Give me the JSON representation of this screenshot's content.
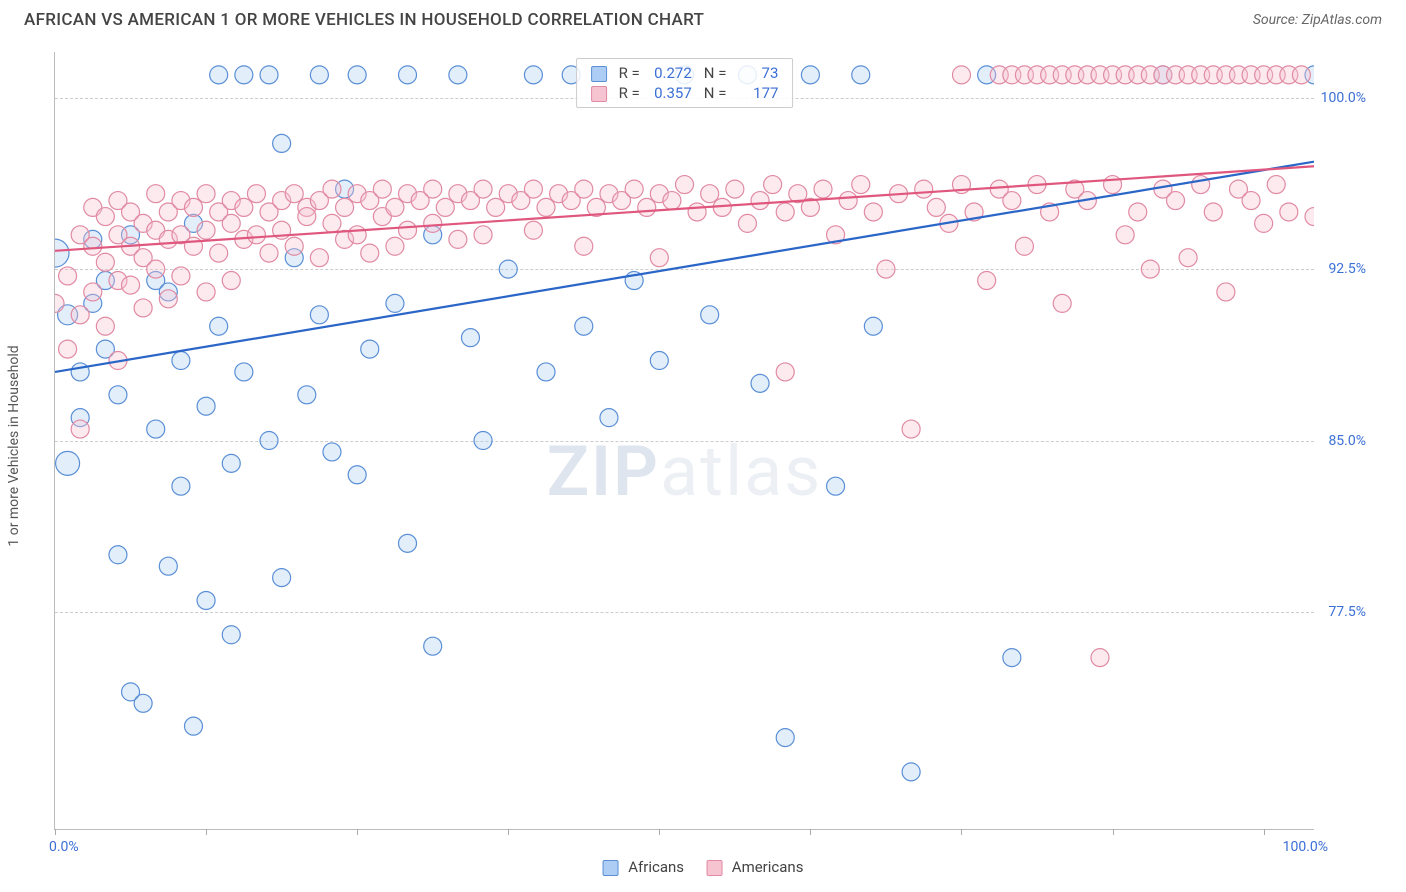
{
  "header": {
    "title": "AFRICAN VS AMERICAN 1 OR MORE VEHICLES IN HOUSEHOLD CORRELATION CHART",
    "source": "Source: ZipAtlas.com"
  },
  "chart": {
    "type": "scatter",
    "background_color": "#ffffff",
    "grid_color": "#cccccc",
    "axis_color": "#bbbbbb",
    "watermark_text_a": "ZIP",
    "watermark_text_b": "atlas",
    "ylabel": "1 or more Vehicles in Household",
    "ylabel_fontsize": 14,
    "xlim": [
      0,
      100
    ],
    "ylim": [
      68,
      102
    ],
    "xtick_label_min": "0.0%",
    "xtick_label_max": "100.0%",
    "xtick_positions_pct": [
      0,
      12,
      24,
      36,
      48,
      60,
      72,
      84,
      96
    ],
    "yticks": [
      {
        "v": 100.0,
        "label": "100.0%"
      },
      {
        "v": 92.5,
        "label": "92.5%"
      },
      {
        "v": 85.0,
        "label": "85.0%"
      },
      {
        "v": 77.5,
        "label": "77.5%"
      }
    ],
    "marker_radius": 9,
    "marker_stroke_width": 1.2,
    "marker_fill_opacity": 0.35,
    "line_width": 2.2,
    "series": [
      {
        "key": "africans",
        "label": "Africans",
        "color_fill": "#aecdf4",
        "color_stroke": "#5a8fd6",
        "line_color": "#2a66c8",
        "R": "0.272",
        "N": "73",
        "trend": {
          "x1": 0,
          "y1": 88.0,
          "x2": 100,
          "y2": 97.2
        },
        "points": [
          [
            0,
            93.2,
            14
          ],
          [
            1,
            90.5,
            10
          ],
          [
            2,
            88.0,
            9
          ],
          [
            2,
            86.0,
            9
          ],
          [
            1,
            84.0,
            12
          ],
          [
            3,
            91.0,
            9
          ],
          [
            3,
            93.8,
            9
          ],
          [
            4,
            92.0,
            9
          ],
          [
            4,
            89.0,
            9
          ],
          [
            5,
            87.0,
            9
          ],
          [
            5,
            80.0,
            9
          ],
          [
            6,
            94.0,
            9
          ],
          [
            6,
            74.0,
            9
          ],
          [
            7,
            73.5,
            9
          ],
          [
            8,
            92.0,
            9
          ],
          [
            8,
            85.5,
            9
          ],
          [
            9,
            91.5,
            9
          ],
          [
            9,
            79.5,
            9
          ],
          [
            10,
            88.5,
            9
          ],
          [
            10,
            83.0,
            9
          ],
          [
            11,
            94.5,
            9
          ],
          [
            11,
            72.5,
            9
          ],
          [
            12,
            86.5,
            9
          ],
          [
            12,
            78.0,
            9
          ],
          [
            13,
            101.0,
            9
          ],
          [
            13,
            90.0,
            9
          ],
          [
            14,
            84.0,
            9
          ],
          [
            14,
            76.5,
            9
          ],
          [
            15,
            101.0,
            9
          ],
          [
            15,
            88.0,
            9
          ],
          [
            17,
            101.0,
            9
          ],
          [
            17,
            85.0,
            9
          ],
          [
            18,
            98.0,
            9
          ],
          [
            18,
            79.0,
            9
          ],
          [
            19,
            93.0,
            9
          ],
          [
            20,
            87.0,
            9
          ],
          [
            21,
            101.0,
            9
          ],
          [
            21,
            90.5,
            9
          ],
          [
            22,
            84.5,
            9
          ],
          [
            23,
            96.0,
            9
          ],
          [
            24,
            101.0,
            9
          ],
          [
            24,
            83.5,
            9
          ],
          [
            25,
            89.0,
            9
          ],
          [
            27,
            91.0,
            9
          ],
          [
            28,
            101.0,
            9
          ],
          [
            28,
            80.5,
            9
          ],
          [
            30,
            94.0,
            9
          ],
          [
            30,
            76.0,
            9
          ],
          [
            32,
            101.0,
            9
          ],
          [
            33,
            89.5,
            9
          ],
          [
            34,
            85.0,
            9
          ],
          [
            36,
            92.5,
            9
          ],
          [
            38,
            101.0,
            9
          ],
          [
            39,
            88.0,
            9
          ],
          [
            41,
            101.0,
            9
          ],
          [
            42,
            90.0,
            9
          ],
          [
            44,
            86.0,
            9
          ],
          [
            46,
            92.0,
            9
          ],
          [
            48,
            88.5,
            9
          ],
          [
            50,
            101.0,
            9
          ],
          [
            52,
            90.5,
            9
          ],
          [
            55,
            101.0,
            9
          ],
          [
            56,
            87.5,
            9
          ],
          [
            58,
            72.0,
            9
          ],
          [
            60,
            101.0,
            9
          ],
          [
            62,
            83.0,
            9
          ],
          [
            64,
            101.0,
            9
          ],
          [
            65,
            90.0,
            9
          ],
          [
            68,
            70.5,
            9
          ],
          [
            74,
            101.0,
            9
          ],
          [
            76,
            75.5,
            9
          ],
          [
            88,
            101.0,
            9
          ],
          [
            100,
            101.0,
            9
          ]
        ]
      },
      {
        "key": "americans",
        "label": "Americans",
        "color_fill": "#f6c4d1",
        "color_stroke": "#e18aa3",
        "line_color": "#e0577e",
        "R": "0.357",
        "N": "177",
        "trend": {
          "x1": 0,
          "y1": 93.3,
          "x2": 100,
          "y2": 97.0
        },
        "points": [
          [
            0,
            91.0,
            9
          ],
          [
            1,
            92.2,
            9
          ],
          [
            1,
            89.0,
            9
          ],
          [
            2,
            94.0,
            9
          ],
          [
            2,
            90.5,
            9
          ],
          [
            2,
            85.5,
            9
          ],
          [
            3,
            95.2,
            9
          ],
          [
            3,
            93.5,
            9
          ],
          [
            3,
            91.5,
            9
          ],
          [
            4,
            94.8,
            9
          ],
          [
            4,
            92.8,
            9
          ],
          [
            4,
            90.0,
            9
          ],
          [
            5,
            95.5,
            9
          ],
          [
            5,
            94.0,
            9
          ],
          [
            5,
            92.0,
            9
          ],
          [
            5,
            88.5,
            9
          ],
          [
            6,
            95.0,
            9
          ],
          [
            6,
            93.5,
            9
          ],
          [
            6,
            91.8,
            9
          ],
          [
            7,
            94.5,
            9
          ],
          [
            7,
            93.0,
            9
          ],
          [
            7,
            90.8,
            9
          ],
          [
            8,
            95.8,
            9
          ],
          [
            8,
            94.2,
            9
          ],
          [
            8,
            92.5,
            9
          ],
          [
            9,
            95.0,
            9
          ],
          [
            9,
            93.8,
            9
          ],
          [
            9,
            91.2,
            9
          ],
          [
            10,
            95.5,
            9
          ],
          [
            10,
            94.0,
            9
          ],
          [
            10,
            92.2,
            9
          ],
          [
            11,
            95.2,
            9
          ],
          [
            11,
            93.5,
            9
          ],
          [
            12,
            95.8,
            9
          ],
          [
            12,
            94.2,
            9
          ],
          [
            12,
            91.5,
            9
          ],
          [
            13,
            95.0,
            9
          ],
          [
            13,
            93.2,
            9
          ],
          [
            14,
            95.5,
            9
          ],
          [
            14,
            94.5,
            9
          ],
          [
            14,
            92.0,
            9
          ],
          [
            15,
            95.2,
            9
          ],
          [
            15,
            93.8,
            9
          ],
          [
            16,
            95.8,
            9
          ],
          [
            16,
            94.0,
            9
          ],
          [
            17,
            95.0,
            9
          ],
          [
            17,
            93.2,
            9
          ],
          [
            18,
            95.5,
            9
          ],
          [
            18,
            94.2,
            9
          ],
          [
            19,
            95.8,
            9
          ],
          [
            19,
            93.5,
            9
          ],
          [
            20,
            95.2,
            9
          ],
          [
            20,
            94.8,
            9
          ],
          [
            21,
            95.5,
            9
          ],
          [
            21,
            93.0,
            9
          ],
          [
            22,
            96.0,
            9
          ],
          [
            22,
            94.5,
            9
          ],
          [
            23,
            95.2,
            9
          ],
          [
            23,
            93.8,
            9
          ],
          [
            24,
            95.8,
            9
          ],
          [
            24,
            94.0,
            9
          ],
          [
            25,
            95.5,
            9
          ],
          [
            25,
            93.2,
            9
          ],
          [
            26,
            96.0,
            9
          ],
          [
            26,
            94.8,
            9
          ],
          [
            27,
            95.2,
            9
          ],
          [
            27,
            93.5,
            9
          ],
          [
            28,
            95.8,
            9
          ],
          [
            28,
            94.2,
            9
          ],
          [
            29,
            95.5,
            9
          ],
          [
            30,
            96.0,
            9
          ],
          [
            30,
            94.5,
            9
          ],
          [
            31,
            95.2,
            9
          ],
          [
            32,
            95.8,
            9
          ],
          [
            32,
            93.8,
            9
          ],
          [
            33,
            95.5,
            9
          ],
          [
            34,
            96.0,
            9
          ],
          [
            34,
            94.0,
            9
          ],
          [
            35,
            95.2,
            9
          ],
          [
            36,
            95.8,
            9
          ],
          [
            37,
            95.5,
            9
          ],
          [
            38,
            96.0,
            9
          ],
          [
            38,
            94.2,
            9
          ],
          [
            39,
            95.2,
            9
          ],
          [
            40,
            95.8,
            9
          ],
          [
            41,
            95.5,
            9
          ],
          [
            42,
            96.0,
            9
          ],
          [
            42,
            93.5,
            9
          ],
          [
            43,
            95.2,
            9
          ],
          [
            44,
            95.8,
            9
          ],
          [
            45,
            95.5,
            9
          ],
          [
            46,
            96.0,
            9
          ],
          [
            47,
            95.2,
            9
          ],
          [
            48,
            95.8,
            9
          ],
          [
            48,
            93.0,
            9
          ],
          [
            49,
            95.5,
            9
          ],
          [
            50,
            96.2,
            9
          ],
          [
            51,
            95.0,
            9
          ],
          [
            52,
            95.8,
            9
          ],
          [
            53,
            95.2,
            9
          ],
          [
            54,
            96.0,
            9
          ],
          [
            55,
            94.5,
            9
          ],
          [
            56,
            95.5,
            9
          ],
          [
            57,
            96.2,
            9
          ],
          [
            58,
            95.0,
            9
          ],
          [
            58,
            88.0,
            9
          ],
          [
            59,
            95.8,
            9
          ],
          [
            60,
            95.2,
            9
          ],
          [
            61,
            96.0,
            9
          ],
          [
            62,
            94.0,
            9
          ],
          [
            63,
            95.5,
            9
          ],
          [
            64,
            96.2,
            9
          ],
          [
            65,
            95.0,
            9
          ],
          [
            66,
            92.5,
            9
          ],
          [
            67,
            95.8,
            9
          ],
          [
            68,
            85.5,
            9
          ],
          [
            69,
            96.0,
            9
          ],
          [
            70,
            95.2,
            9
          ],
          [
            71,
            94.5,
            9
          ],
          [
            72,
            101.0,
            9
          ],
          [
            72,
            96.2,
            9
          ],
          [
            73,
            95.0,
            9
          ],
          [
            74,
            92.0,
            9
          ],
          [
            75,
            101.0,
            9
          ],
          [
            75,
            96.0,
            9
          ],
          [
            76,
            101.0,
            9
          ],
          [
            76,
            95.5,
            9
          ],
          [
            77,
            101.0,
            9
          ],
          [
            77,
            93.5,
            9
          ],
          [
            78,
            101.0,
            9
          ],
          [
            78,
            96.2,
            9
          ],
          [
            79,
            101.0,
            9
          ],
          [
            79,
            95.0,
            9
          ],
          [
            80,
            101.0,
            9
          ],
          [
            80,
            91.0,
            9
          ],
          [
            81,
            101.0,
            9
          ],
          [
            81,
            96.0,
            9
          ],
          [
            82,
            101.0,
            9
          ],
          [
            82,
            95.5,
            9
          ],
          [
            83,
            101.0,
            9
          ],
          [
            83,
            75.5,
            9
          ],
          [
            84,
            101.0,
            9
          ],
          [
            84,
            96.2,
            9
          ],
          [
            85,
            101.0,
            9
          ],
          [
            85,
            94.0,
            9
          ],
          [
            86,
            101.0,
            9
          ],
          [
            86,
            95.0,
            9
          ],
          [
            87,
            101.0,
            9
          ],
          [
            87,
            92.5,
            9
          ],
          [
            88,
            101.0,
            9
          ],
          [
            88,
            96.0,
            9
          ],
          [
            89,
            101.0,
            9
          ],
          [
            89,
            95.5,
            9
          ],
          [
            90,
            101.0,
            9
          ],
          [
            90,
            93.0,
            9
          ],
          [
            91,
            101.0,
            9
          ],
          [
            91,
            96.2,
            9
          ],
          [
            92,
            101.0,
            9
          ],
          [
            92,
            95.0,
            9
          ],
          [
            93,
            101.0,
            9
          ],
          [
            93,
            91.5,
            9
          ],
          [
            94,
            101.0,
            9
          ],
          [
            94,
            96.0,
            9
          ],
          [
            95,
            101.0,
            9
          ],
          [
            95,
            95.5,
            9
          ],
          [
            96,
            101.0,
            9
          ],
          [
            96,
            94.5,
            9
          ],
          [
            97,
            101.0,
            9
          ],
          [
            97,
            96.2,
            9
          ],
          [
            98,
            101.0,
            9
          ],
          [
            98,
            95.0,
            9
          ],
          [
            99,
            101.0,
            9
          ],
          [
            100,
            94.8,
            9
          ]
        ]
      }
    ],
    "legend_top_labels": {
      "R": "R =",
      "N": "N ="
    },
    "legend_bottom_order": [
      "africans",
      "americans"
    ]
  }
}
